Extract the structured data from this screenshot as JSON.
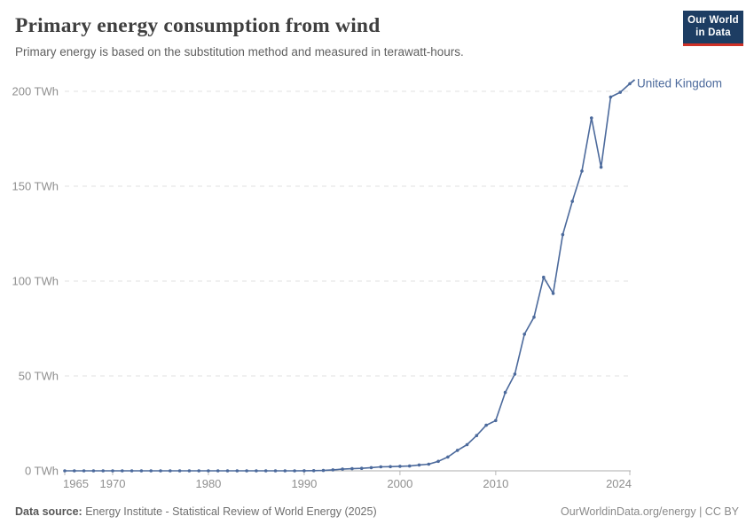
{
  "header": {
    "title": "Primary energy consumption from wind",
    "subtitle": "Primary energy is based on the substitution method and measured in terawatt-hours.",
    "logo": {
      "line1": "Our World",
      "line2": "in Data",
      "bg_color": "#1d3d63",
      "accent_color": "#cf3127"
    }
  },
  "chart_data": {
    "type": "line",
    "title": "Primary energy consumption from wind",
    "unit": "TWh",
    "xlim": [
      1965,
      2024
    ],
    "ylim": [
      0,
      207
    ],
    "grid": "horizontal-dashed",
    "legend_position": "line-end-label",
    "colors": {
      "line": "#4c6a9c",
      "grid": "#e0e0e0",
      "axis": "#adadad",
      "tick": "#b8b8b8",
      "tick_text": "#8f8f8f"
    },
    "y_ticks": [
      {
        "v": 0,
        "label": "0 TWh"
      },
      {
        "v": 50,
        "label": "50 TWh"
      },
      {
        "v": 100,
        "label": "100 TWh"
      },
      {
        "v": 150,
        "label": "150 TWh"
      },
      {
        "v": 200,
        "label": "200 TWh"
      }
    ],
    "x_ticks": [
      {
        "v": 1965,
        "label": "1965"
      },
      {
        "v": 1970,
        "label": "1970"
      },
      {
        "v": 1980,
        "label": "1980"
      },
      {
        "v": 1990,
        "label": "1990"
      },
      {
        "v": 2000,
        "label": "2000"
      },
      {
        "v": 2010,
        "label": "2010"
      },
      {
        "v": 2024,
        "label": "2024"
      }
    ],
    "series": [
      {
        "name": "United Kingdom",
        "end_label": "United Kingdom",
        "x": [
          1965,
          1966,
          1967,
          1968,
          1969,
          1970,
          1971,
          1972,
          1973,
          1974,
          1975,
          1976,
          1977,
          1978,
          1979,
          1980,
          1981,
          1982,
          1983,
          1984,
          1985,
          1986,
          1987,
          1988,
          1989,
          1990,
          1991,
          1992,
          1993,
          1994,
          1995,
          1996,
          1997,
          1998,
          1999,
          2000,
          2001,
          2002,
          2003,
          2004,
          2005,
          2006,
          2007,
          2008,
          2009,
          2010,
          2011,
          2012,
          2013,
          2014,
          2015,
          2016,
          2017,
          2018,
          2019,
          2020,
          2021,
          2022,
          2023,
          2024
        ],
        "values": [
          0,
          0,
          0,
          0,
          0,
          0,
          0,
          0,
          0,
          0,
          0,
          0,
          0,
          0,
          0,
          0,
          0,
          0,
          0,
          0,
          0,
          0,
          0,
          0.01,
          0.02,
          0.05,
          0.1,
          0.2,
          0.5,
          0.9,
          1.1,
          1.3,
          1.7,
          2.1,
          2.2,
          2.4,
          2.5,
          3.1,
          3.5,
          5.0,
          7.3,
          10.8,
          13.8,
          18.6,
          24.0,
          26.5,
          41.3,
          51,
          72,
          81,
          102,
          93.5,
          124.5,
          142,
          158,
          186,
          160,
          197,
          199.5,
          204
        ]
      }
    ]
  },
  "footer": {
    "datasource_label": "Data source:",
    "datasource_text": "Energy Institute - Statistical Review of World Energy (2025)",
    "attribution": "OurWorldinData.org/energy | CC BY"
  }
}
